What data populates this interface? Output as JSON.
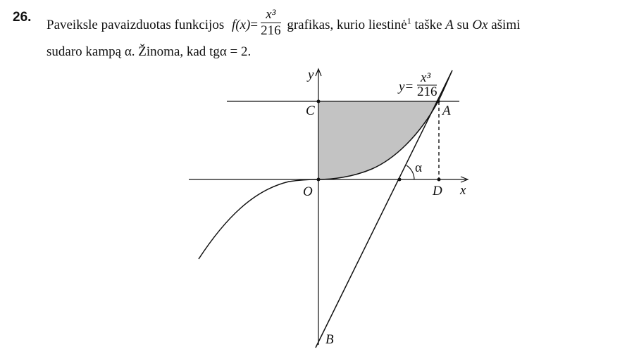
{
  "problem": {
    "number": "26.",
    "text_before_fn": "Paveiksle pavaizduotas funkcijos",
    "fn_name": "f(x)",
    "equals": "=",
    "frac_num": "x³",
    "frac_den": "216",
    "text_after_fn": "grafikas, kurio liestinė",
    "footnote": "1",
    "text_point": "taške",
    "point_A": "A",
    "text_su": "su",
    "axis_Ox": "Ox",
    "text_end": "ašimi",
    "line2_start": "sudaro kampą",
    "alpha": "α.",
    "line2_mid": "Žinoma, kad",
    "tg_expr": "tgα = 2."
  },
  "diagram": {
    "label_y": "y",
    "label_x": "x",
    "label_O": "O",
    "label_C": "C",
    "label_A": "A",
    "label_D": "D",
    "label_B": "B",
    "label_alpha": "α",
    "curve_label_prefix": "y=",
    "curve_label_num": "x³",
    "curve_label_den": "216",
    "shade_color": "#c3c3c3",
    "line_color": "#111111"
  }
}
